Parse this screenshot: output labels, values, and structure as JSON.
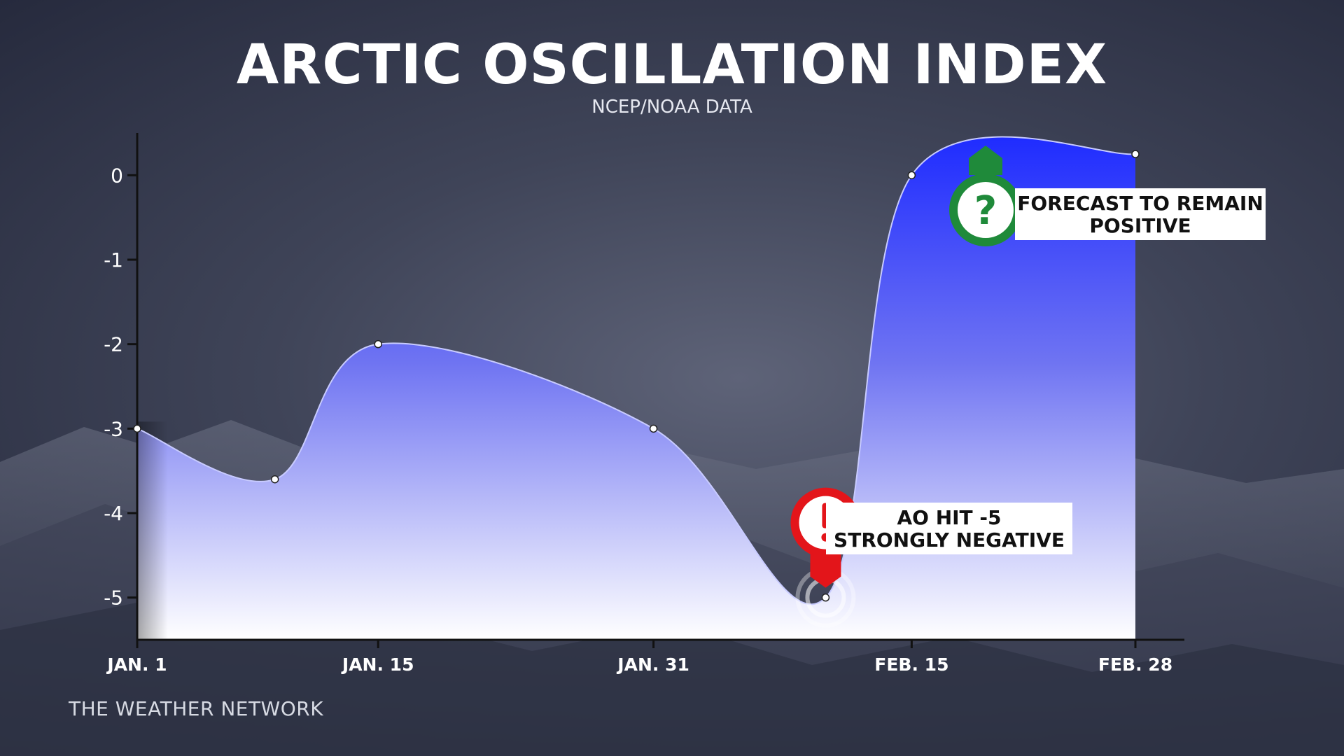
{
  "title": "ARCTIC OSCILLATION INDEX",
  "subtitle": "NCEP/NOAA DATA",
  "brand": "THE WEATHER NETWORK",
  "colors": {
    "fill_top": "#1f2cff",
    "fill_bottom": "#ffffff",
    "negative_marker": "#e3151a",
    "positive_marker": "#1f8a3a"
  },
  "callouts": {
    "negative": {
      "line1": "AO HIT -5",
      "line2": "STRONGLY NEGATIVE",
      "icon": "exclamation-icon"
    },
    "positive": {
      "line1": "FORECAST TO REMAIN",
      "line2": "POSITIVE",
      "icon": "question-icon"
    }
  },
  "chart_data": {
    "type": "area",
    "title": "ARCTIC OSCILLATION INDEX",
    "subtitle": "NCEP/NOAA DATA",
    "x_day": [
      1,
      9,
      15,
      31,
      41,
      46,
      59
    ],
    "y": [
      -3.0,
      -3.6,
      -2.0,
      -3.0,
      -5.0,
      0.0,
      0.25
    ],
    "xticks": [
      {
        "day": 1,
        "label": "JAN. 1"
      },
      {
        "day": 15,
        "label": "JAN. 15"
      },
      {
        "day": 31,
        "label": "JAN. 31"
      },
      {
        "day": 46,
        "label": "FEB. 15"
      },
      {
        "day": 59,
        "label": "FEB. 28"
      }
    ],
    "yticks": [
      0,
      -1,
      -2,
      -3,
      -4,
      -5
    ],
    "ylim": [
      -5.5,
      0.5
    ],
    "xlim": [
      1,
      59
    ],
    "grid": false,
    "legend": "none"
  }
}
